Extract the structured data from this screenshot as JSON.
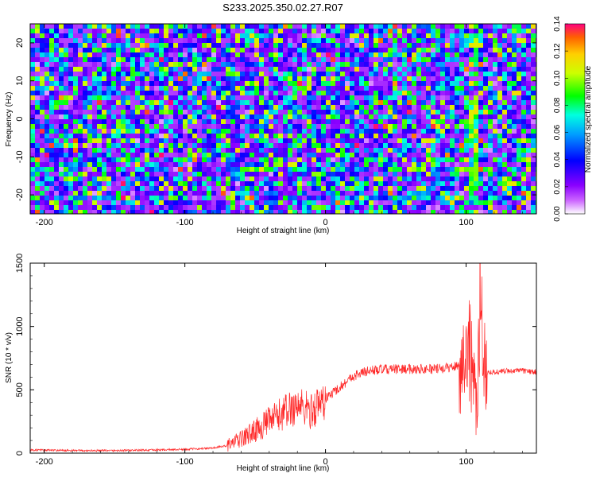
{
  "title": "S233.2025.350.02.27.R07",
  "colors": {
    "snr_line": "#ff2a2a",
    "axes": "#000000"
  },
  "chart_data": [
    {
      "type": "heatmap",
      "xlabel": "Height of straight line (km)",
      "ylabel": "Frequency (Hz)",
      "xlim": [
        -210,
        150
      ],
      "ylim": [
        -25,
        25
      ],
      "xticks": [
        -200,
        -100,
        0,
        100
      ],
      "yticks": [
        -20,
        -10,
        0,
        10,
        20
      ],
      "colorbar": {
        "label": "Normalized spectral amplitude",
        "range": [
          0.0,
          0.14
        ],
        "ticks": [
          "0.00",
          "0.02",
          "0.04",
          "0.06",
          "0.08",
          "0.10",
          "0.12",
          "0.14"
        ]
      },
      "description_values": {
        "noise_floor_amplitude": 0.02,
        "peak_amplitude": 0.13
      }
    },
    {
      "type": "line",
      "xlabel": "Height of straight line (km)",
      "ylabel": "SNR (10 * v/v)",
      "xlim": [
        -210,
        150
      ],
      "ylim": [
        0,
        1500
      ],
      "xticks": [
        -200,
        -100,
        0,
        100
      ],
      "yticks": [
        0,
        500,
        1000,
        1500
      ],
      "series": [
        {
          "name": "SNR",
          "x": [
            -210,
            -180,
            -150,
            -120,
            -100,
            -80,
            -70,
            -60,
            -50,
            -40,
            -30,
            -20,
            -10,
            0,
            10,
            20,
            30,
            40,
            60,
            80,
            90,
            98,
            102,
            105,
            108,
            110,
            112,
            115,
            120,
            130,
            140,
            150
          ],
          "y": [
            25,
            20,
            20,
            25,
            30,
            40,
            60,
            110,
            180,
            250,
            320,
            380,
            330,
            430,
            520,
            610,
            650,
            660,
            665,
            665,
            680,
            700,
            900,
            600,
            250,
            1500,
            750,
            640,
            640,
            650,
            650,
            640
          ]
        }
      ]
    }
  ]
}
